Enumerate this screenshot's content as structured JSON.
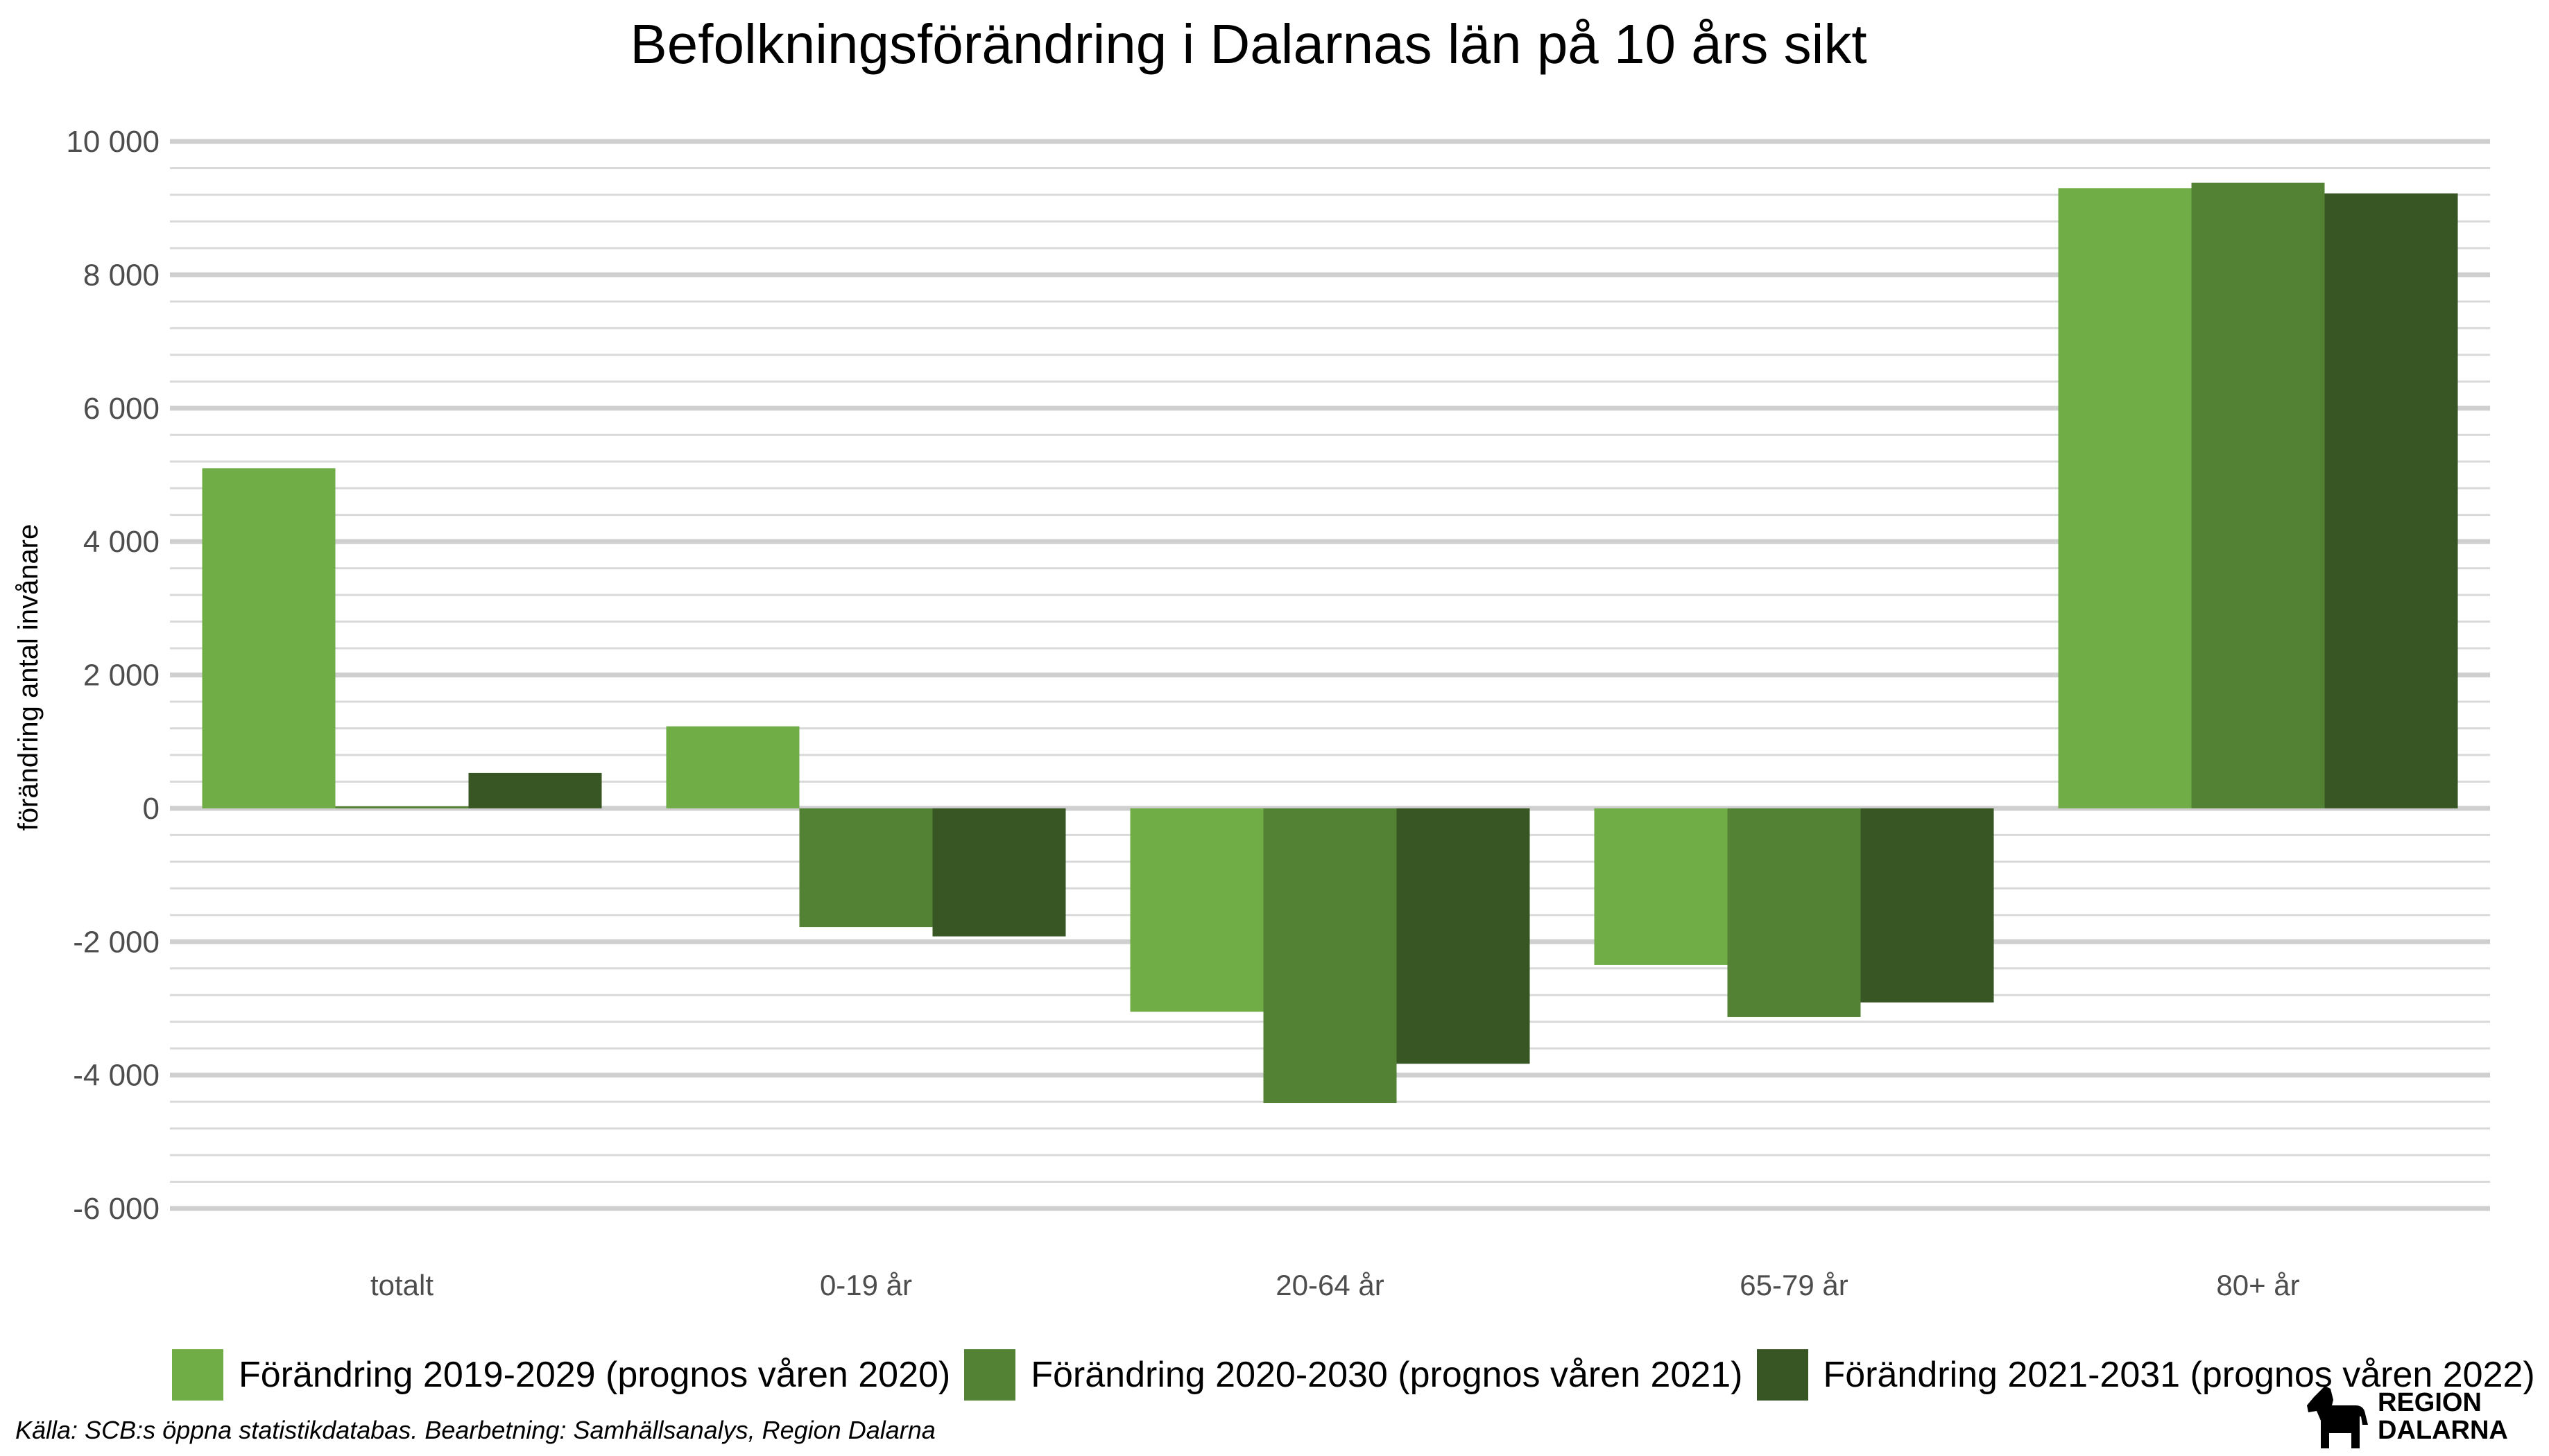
{
  "chart_data": {
    "type": "bar",
    "title": "Befolkningsförändring i Dalarnas län på 10 års sikt",
    "xlabel": "",
    "ylabel": "förändring antal invånare",
    "ylim": [
      -6000,
      10000
    ],
    "y_ticks": [
      {
        "value": 10000,
        "label": "10 000"
      },
      {
        "value": 8000,
        "label": "8 000"
      },
      {
        "value": 6000,
        "label": "6 000"
      },
      {
        "value": 4000,
        "label": "4 000"
      },
      {
        "value": 2000,
        "label": "2 000"
      },
      {
        "value": 0,
        "label": "0"
      },
      {
        "value": -2000,
        "label": "-2 000"
      },
      {
        "value": -4000,
        "label": "-4 000"
      },
      {
        "value": -6000,
        "label": "-6 000"
      }
    ],
    "minor_step": 400,
    "categories": [
      "totalt",
      "0-19 år",
      "20-64 år",
      "65-79 år",
      "80+ år"
    ],
    "series": [
      {
        "name": "Förändring 2019-2029 (prognos våren 2020)",
        "color": "#70ad47",
        "values": [
          5100,
          1230,
          -3050,
          -2350,
          9300
        ]
      },
      {
        "name": "Förändring 2020-2030 (prognos våren 2021)",
        "color": "#548235",
        "values": [
          30,
          -1780,
          -4420,
          -3130,
          9380
        ]
      },
      {
        "name": "Förändring 2021-2031 (prognos våren 2022)",
        "color": "#375623",
        "values": [
          530,
          -1920,
          -3830,
          -2910,
          9220
        ]
      }
    ],
    "grid": true,
    "legend_position": "bottom"
  },
  "source": "Källa: SCB:s öppna statistikdatabas. Bearbetning: Samhällsanalys, Region Dalarna",
  "logo": {
    "line1": "REGION",
    "line2": "DALARNA"
  }
}
